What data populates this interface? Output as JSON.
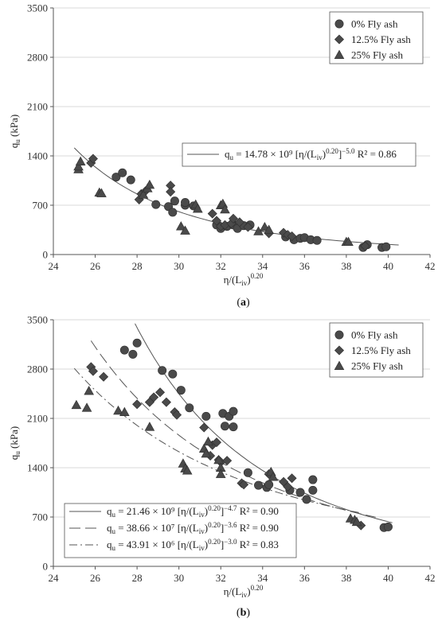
{
  "chart_data": [
    {
      "type": "scatter",
      "caption": "(a)",
      "xlabel_main": "η/(L",
      "xlabel_sub": "iv",
      "xlabel_sup": "0.20",
      "ylabel_main": "q",
      "ylabel_sub": "u",
      "ylabel_unit": " (kPa)",
      "xlim": [
        24,
        42
      ],
      "ylim": [
        0,
        3500
      ],
      "xticks": [
        "24",
        "26",
        "28",
        "30",
        "32",
        "34",
        "36",
        "38",
        "40",
        "42"
      ],
      "yticks": [
        "0",
        "700",
        "1400",
        "2100",
        "2800",
        "3500"
      ],
      "legend": [
        "0% Fly ash",
        "12.5% Fly ash",
        "25% Fly ash"
      ],
      "series": [
        {
          "name": "0% Fly ash",
          "marker": "circle",
          "points": [
            [
              27.0,
              1100
            ],
            [
              27.3,
              1160
            ],
            [
              27.7,
              1060
            ],
            [
              28.9,
              710
            ],
            [
              29.5,
              680
            ],
            [
              29.7,
              600
            ],
            [
              29.8,
              760
            ],
            [
              30.3,
              700
            ],
            [
              30.3,
              740
            ],
            [
              30.7,
              690
            ],
            [
              31.8,
              420
            ],
            [
              32.0,
              370
            ],
            [
              32.3,
              400
            ],
            [
              32.6,
              420
            ],
            [
              32.8,
              370
            ],
            [
              33.1,
              410
            ],
            [
              33.4,
              420
            ],
            [
              35.1,
              250
            ],
            [
              35.5,
              210
            ],
            [
              35.8,
              230
            ],
            [
              36.0,
              240
            ],
            [
              36.3,
              210
            ],
            [
              36.6,
              200
            ],
            [
              38.8,
              100
            ],
            [
              39.0,
              140
            ],
            [
              39.7,
              100
            ],
            [
              39.9,
              110
            ]
          ]
        },
        {
          "name": "12.5% Fly ash",
          "marker": "diamond",
          "points": [
            [
              25.8,
              1300
            ],
            [
              25.9,
              1360
            ],
            [
              28.1,
              780
            ],
            [
              28.2,
              860
            ],
            [
              28.4,
              900
            ],
            [
              29.6,
              980
            ],
            [
              29.6,
              890
            ],
            [
              31.6,
              580
            ],
            [
              31.8,
              480
            ],
            [
              32.0,
              400
            ],
            [
              32.2,
              420
            ],
            [
              32.5,
              440
            ],
            [
              32.6,
              510
            ],
            [
              32.9,
              460
            ],
            [
              33.3,
              390
            ],
            [
              34.3,
              300
            ],
            [
              35.0,
              310
            ],
            [
              35.2,
              280
            ],
            [
              35.4,
              260
            ],
            [
              38.9,
              120
            ]
          ]
        },
        {
          "name": "25% Fly ash",
          "marker": "triangle",
          "points": [
            [
              25.2,
              1210
            ],
            [
              25.2,
              1250
            ],
            [
              25.3,
              1320
            ],
            [
              26.2,
              880
            ],
            [
              26.3,
              870
            ],
            [
              28.3,
              850
            ],
            [
              28.5,
              940
            ],
            [
              28.6,
              990
            ],
            [
              30.1,
              400
            ],
            [
              30.3,
              340
            ],
            [
              30.8,
              710
            ],
            [
              30.9,
              650
            ],
            [
              32.0,
              700
            ],
            [
              32.1,
              720
            ],
            [
              32.2,
              640
            ],
            [
              33.8,
              330
            ],
            [
              34.1,
              390
            ],
            [
              34.3,
              350
            ],
            [
              38.0,
              180
            ],
            [
              38.1,
              180
            ]
          ]
        }
      ],
      "fits": [
        {
          "label_lhs": "q",
          "label_lhs_sub": "u",
          "label_mid": " = 14.78 × 10⁹ [η/(L",
          "label_mid_sub": "iv",
          "label_mid_sup1": "0.20",
          "label_end": "]",
          "label_exp": "−5.0",
          "label_r2": " R² = 0.86",
          "style": "solid",
          "A": 14780000000,
          "n": -5.0
        }
      ]
    },
    {
      "type": "scatter",
      "caption": "(b)",
      "xlabel_main": "η/(L",
      "xlabel_sub": "iv",
      "xlabel_sup": "0.20",
      "ylabel_main": "q",
      "ylabel_sub": "u",
      "ylabel_unit": " (kPa)",
      "xlim": [
        24,
        42
      ],
      "ylim": [
        0,
        3500
      ],
      "xticks": [
        "24",
        "26",
        "28",
        "30",
        "32",
        "34",
        "36",
        "38",
        "40",
        "42"
      ],
      "yticks": [
        "0",
        "700",
        "1400",
        "2100",
        "2800",
        "3500"
      ],
      "legend": [
        "0% Fly ash",
        "12.5% Fly ash",
        "25% Fly ash"
      ],
      "series": [
        {
          "name": "0% Fly ash",
          "marker": "circle",
          "points": [
            [
              27.4,
              3070
            ],
            [
              27.8,
              3010
            ],
            [
              28.0,
              3170
            ],
            [
              29.2,
              2780
            ],
            [
              29.7,
              2730
            ],
            [
              30.1,
              2500
            ],
            [
              30.5,
              2250
            ],
            [
              31.3,
              2130
            ],
            [
              32.1,
              2170
            ],
            [
              32.2,
              1990
            ],
            [
              32.4,
              2130
            ],
            [
              32.6,
              2200
            ],
            [
              32.6,
              1980
            ],
            [
              33.3,
              1330
            ],
            [
              33.8,
              1150
            ],
            [
              34.2,
              1120
            ],
            [
              34.3,
              1160
            ],
            [
              35.3,
              1080
            ],
            [
              35.8,
              1050
            ],
            [
              36.1,
              950
            ],
            [
              36.4,
              1230
            ],
            [
              36.4,
              1080
            ],
            [
              39.8,
              550
            ],
            [
              40.0,
              560
            ]
          ]
        },
        {
          "name": "12.5% Fly ash",
          "marker": "diamond",
          "points": [
            [
              25.8,
              2830
            ],
            [
              25.9,
              2770
            ],
            [
              26.4,
              2690
            ],
            [
              28.0,
              2300
            ],
            [
              28.6,
              2330
            ],
            [
              28.8,
              2400
            ],
            [
              29.1,
              2470
            ],
            [
              29.4,
              2330
            ],
            [
              29.8,
              2190
            ],
            [
              29.9,
              2150
            ],
            [
              31.2,
              1970
            ],
            [
              31.5,
              1570
            ],
            [
              31.6,
              1720
            ],
            [
              31.8,
              1760
            ],
            [
              31.9,
              1510
            ],
            [
              32.0,
              1480
            ],
            [
              32.3,
              1500
            ],
            [
              33.0,
              1180
            ],
            [
              33.1,
              1160
            ],
            [
              34.3,
              1310
            ],
            [
              35.0,
              1200
            ],
            [
              35.2,
              1130
            ],
            [
              35.4,
              1250
            ],
            [
              38.7,
              580
            ]
          ]
        },
        {
          "name": "25% Fly ash",
          "marker": "triangle",
          "points": [
            [
              25.1,
              2290
            ],
            [
              25.6,
              2250
            ],
            [
              25.7,
              2490
            ],
            [
              27.1,
              2210
            ],
            [
              27.4,
              2190
            ],
            [
              28.6,
              1980
            ],
            [
              30.2,
              1460
            ],
            [
              30.3,
              1390
            ],
            [
              30.4,
              1360
            ],
            [
              31.2,
              1670
            ],
            [
              31.3,
              1600
            ],
            [
              31.4,
              1770
            ],
            [
              31.9,
              1510
            ],
            [
              32.0,
              1400
            ],
            [
              32.0,
              1310
            ],
            [
              34.4,
              1340
            ],
            [
              34.5,
              1270
            ],
            [
              38.2,
              680
            ],
            [
              38.4,
              660
            ],
            [
              38.5,
              630
            ]
          ]
        }
      ],
      "fits": [
        {
          "label_lhs": "q",
          "label_lhs_sub": "u",
          "label_mid": " = 21.46 × 10⁹ [η/(L",
          "label_mid_sub": "iv",
          "label_mid_sup1": "0.20",
          "label_end": "]",
          "label_exp": "−4.7",
          "label_r2": " R² = 0.90",
          "style": "solid",
          "A": 21460000000,
          "n": -4.7
        },
        {
          "label_lhs": "q",
          "label_lhs_sub": "u",
          "label_mid": " = 38.66 × 10⁷ [η/(L",
          "label_mid_sub": "iv",
          "label_mid_sup1": "0.20",
          "label_end": "]",
          "label_exp": "−3.6",
          "label_r2": " R² = 0.90",
          "style": "dashed",
          "A": 386600000,
          "n": -3.6
        },
        {
          "label_lhs": "q",
          "label_lhs_sub": "u",
          "label_mid": " = 43.91 × 10⁶ [η/(L",
          "label_mid_sub": "iv",
          "label_mid_sup1": "0.20",
          "label_end": "]",
          "label_exp": "−3.0",
          "label_r2": " R² = 0.83",
          "style": "dashdot",
          "A": 43910000,
          "n": -3.0
        }
      ]
    }
  ],
  "colors": {
    "marker": "#4a4a4a",
    "marker_stroke": "#2e2e2e",
    "grid": "#d9d9d9",
    "axis": "#555555",
    "fit": "#555555"
  }
}
